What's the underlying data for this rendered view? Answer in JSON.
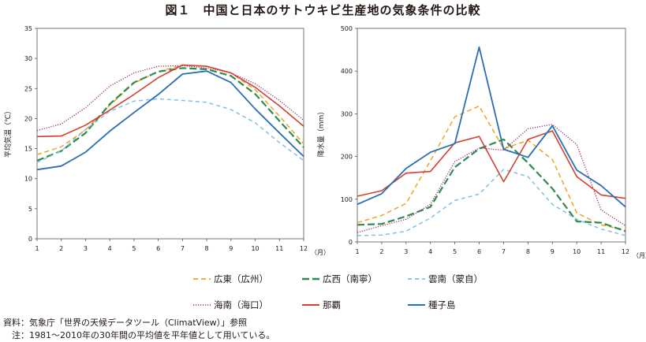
{
  "figure": {
    "title": "図１　中国と日本のサトウキビ生産地の気象条件の比較",
    "source_note": "資料：気象庁「世界の天候データツール（ClimatView）」参照",
    "footnote": "　注：1981～2010年の30年間の平均値を平年値として用いている。"
  },
  "series_styles": [
    {
      "name": "広東（広州）",
      "color": "#F0A21F",
      "dash": "6,4",
      "width": 1.5
    },
    {
      "name": "広西（南寧）",
      "color": "#2E8B50",
      "dash": "9,4",
      "width": 2.2
    },
    {
      "name": "雲南（蒙自）",
      "color": "#7EC0E8",
      "dash": "5,4",
      "width": 1.5
    },
    {
      "name": "海南（海口）",
      "color": "#A0286E",
      "dash": "1.2,1.8",
      "width": 1.3
    },
    {
      "name": "那覇",
      "color": "#D3402E",
      "dash": "",
      "width": 1.6
    },
    {
      "name": "種子島",
      "color": "#2A6EB4",
      "dash": "",
      "width": 1.8
    }
  ],
  "chart_data": [
    {
      "type": "line",
      "ylabel": "平均気温（℃）",
      "x_unit": "（月）",
      "x": [
        1,
        2,
        3,
        4,
        5,
        6,
        7,
        8,
        9,
        10,
        11,
        12
      ],
      "ylim": [
        0,
        35
      ],
      "yticks": [
        0,
        5,
        10,
        15,
        20,
        25,
        30,
        35
      ],
      "grid": false,
      "series": [
        {
          "name": "広東（広州）",
          "values": [
            14.0,
            15.3,
            18.1,
            22.2,
            25.9,
            27.8,
            28.9,
            28.7,
            27.6,
            24.8,
            20.4,
            15.8
          ]
        },
        {
          "name": "広西（南寧）",
          "values": [
            13.0,
            14.6,
            17.6,
            22.4,
            26.0,
            27.8,
            28.4,
            28.2,
            27.1,
            24.1,
            19.6,
            15.2
          ]
        },
        {
          "name": "雲南（蒙自）",
          "values": [
            12.7,
            14.6,
            18.2,
            21.2,
            22.9,
            23.3,
            23.0,
            22.7,
            21.5,
            19.3,
            16.0,
            13.0
          ]
        },
        {
          "name": "海南（海口）",
          "values": [
            18.0,
            19.1,
            21.8,
            25.4,
            27.6,
            28.7,
            28.8,
            28.4,
            27.6,
            25.8,
            23.0,
            19.7
          ]
        },
        {
          "name": "那覇",
          "values": [
            17.0,
            17.1,
            18.9,
            21.4,
            24.0,
            26.8,
            28.9,
            28.7,
            27.6,
            25.2,
            22.1,
            18.7
          ]
        },
        {
          "name": "種子島",
          "values": [
            11.5,
            12.1,
            14.4,
            17.9,
            21.0,
            24.0,
            27.4,
            27.9,
            26.0,
            21.6,
            17.6,
            13.7
          ]
        }
      ]
    },
    {
      "type": "line",
      "ylabel": "降水量（mm）",
      "x_unit": "（月）",
      "x": [
        1,
        2,
        3,
        4,
        5,
        6,
        7,
        8,
        9,
        10,
        11,
        12
      ],
      "ylim": [
        0,
        500
      ],
      "yticks": [
        0,
        100,
        200,
        300,
        400,
        500
      ],
      "grid": false,
      "series": [
        {
          "name": "広東（広州）",
          "values": [
            45,
            62,
            90,
            190,
            293,
            318,
            218,
            238,
            193,
            68,
            40,
            28
          ]
        },
        {
          "name": "広西（南寧）",
          "values": [
            40,
            42,
            60,
            82,
            175,
            218,
            240,
            185,
            125,
            48,
            45,
            25
          ]
        },
        {
          "name": "雲南（蒙自）",
          "values": [
            15,
            16,
            25,
            56,
            97,
            112,
            170,
            153,
            88,
            53,
            30,
            15
          ]
        },
        {
          "name": "海南（海口）",
          "values": [
            22,
            38,
            53,
            88,
            188,
            220,
            215,
            265,
            275,
            228,
            75,
            38
          ]
        },
        {
          "name": "那覇",
          "values": [
            107,
            120,
            161,
            165,
            232,
            247,
            141,
            240,
            260,
            153,
            110,
            102
          ]
        },
        {
          "name": "種子島",
          "values": [
            88,
            113,
            172,
            210,
            230,
            456,
            217,
            198,
            272,
            168,
            132,
            82
          ]
        }
      ]
    }
  ]
}
